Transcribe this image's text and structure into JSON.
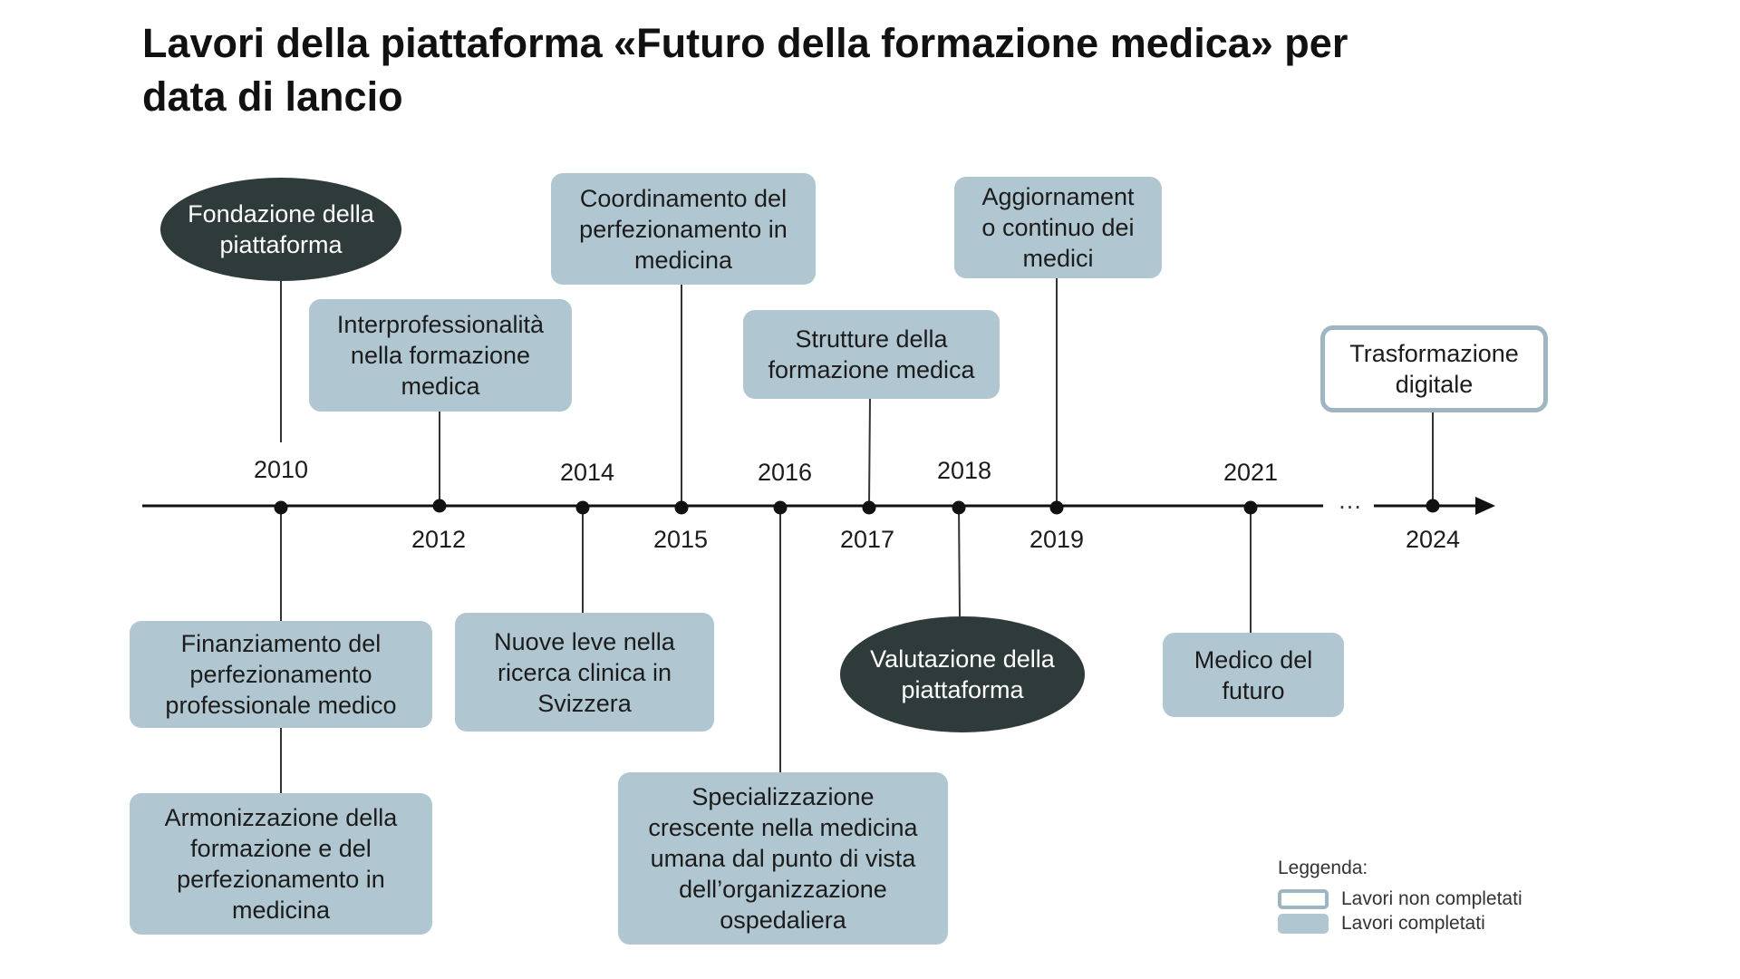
{
  "title": {
    "line1": "Lavori della piattaforma «Futuro della formazione medica» per",
    "line2": "data di lancio"
  },
  "colors": {
    "completed": "#b0c7d1",
    "not_completed_border": "#9db6c2",
    "platform_milestone": "#2f3b3a",
    "axis": "#111111"
  },
  "years_above": [
    "2010",
    "2014",
    "2016",
    "2018",
    "2021"
  ],
  "years_below": [
    "2012",
    "2015",
    "2017",
    "2019",
    "2024"
  ],
  "ellipsis": "…",
  "boxes": {
    "fondazione": [
      "Fondazione della",
      "piattaforma"
    ],
    "interprofessionalita": [
      "Interprofessionalità",
      "nella formazione",
      "medica"
    ],
    "coordinamento": [
      "Coordinamento  del",
      "perfezionamento in",
      "medicina"
    ],
    "strutture": [
      "Strutture della",
      "formazione medica"
    ],
    "aggiornamento": [
      "Aggiornament",
      "o continuo dei",
      "medici"
    ],
    "trasformazione": [
      "Trasformazione",
      "digitale"
    ],
    "finanziamento": [
      "Finanziamento del",
      "perfezionamento",
      "professionale medico"
    ],
    "armonizzazione": [
      "Armonizzazione della",
      "formazione e del",
      "perfezionamento in",
      "medicina"
    ],
    "nuove_leve": [
      "Nuove leve nella",
      "ricerca clinica in",
      "Svizzera"
    ],
    "specializzazione": [
      "Specializzazione",
      "crescente nella medicina",
      "umana dal punto di vista",
      "dell’organizzazione",
      "ospedaliera"
    ],
    "valutazione": [
      "Valutazione della",
      "piattaforma"
    ],
    "medico_futuro": [
      "Medico del",
      "futuro"
    ]
  },
  "legend": {
    "title": "Leggenda:",
    "not_completed": "Lavori non completati",
    "completed": "Lavori completati"
  }
}
